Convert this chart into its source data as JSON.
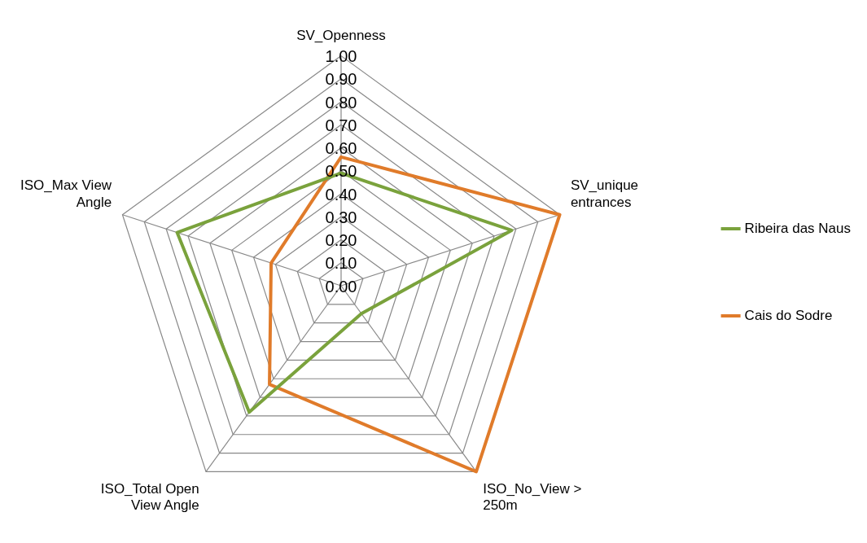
{
  "chart_data": {
    "type": "radar",
    "categories": [
      "SV_Openness",
      "SV_unique entrances",
      "ISO_No_View > 250m",
      "ISO_Total Open View Angle",
      "ISO_Max View Angle"
    ],
    "series": [
      {
        "name": "Ribeira das Naus",
        "color": "#7aa23c",
        "values": [
          0.49,
          0.78,
          0.15,
          0.68,
          0.75
        ]
      },
      {
        "name": "Cais do Sodre",
        "color": "#e07b2a",
        "values": [
          0.56,
          1.0,
          1.0,
          0.53,
          0.32
        ]
      }
    ],
    "ylim": [
      0,
      1
    ],
    "yticks": [
      {
        "value": 0,
        "label": "0.00"
      },
      {
        "value": 0.1,
        "label": "0.10"
      },
      {
        "value": 0.2,
        "label": "0.20"
      },
      {
        "value": 0.3,
        "label": "0.30"
      },
      {
        "value": 0.4,
        "label": "0.40"
      },
      {
        "value": 0.5,
        "label": "0.50"
      },
      {
        "value": 0.6,
        "label": "0.60"
      },
      {
        "value": 0.7,
        "label": "0.70"
      },
      {
        "value": 0.8,
        "label": "0.80"
      },
      {
        "value": 0.9,
        "label": "0.90"
      },
      {
        "value": 1,
        "label": "1.00"
      }
    ],
    "grid": true,
    "legend": "right",
    "marker": "none"
  }
}
